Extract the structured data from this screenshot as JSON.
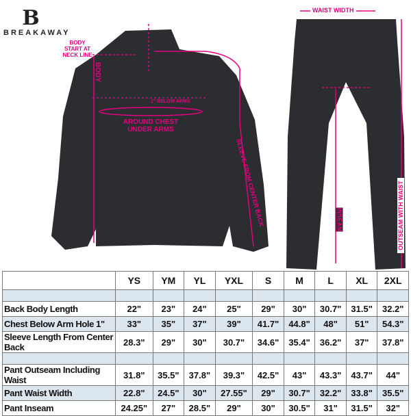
{
  "brand": {
    "logo_letter": "B",
    "name": "BREAKAWAY"
  },
  "annotations": {
    "body_start": "BODY START AT NECK LINE",
    "body": "BODY",
    "below_arms": "1\" BELOW ARMS",
    "around_chest": "AROUND CHEST UNDER ARMS",
    "sleeve": "SLEEVE FROM CENTER BACK",
    "waist_width": "WAIST WIDTH",
    "inseam": "INSEAM",
    "outseam": "OUTSEAM WITH WAIST"
  },
  "colors": {
    "accent": "#e6007e",
    "garment": "#2b2d31",
    "row_alt": "#dce6ef"
  },
  "table": {
    "sizes": [
      "YS",
      "YM",
      "YL",
      "YXL",
      "S",
      "M",
      "L",
      "XL",
      "2XL"
    ],
    "rows": [
      {
        "label": "Back Body Length",
        "values": [
          "22\"",
          "23\"",
          "24\"",
          "25\"",
          "29\"",
          "30\"",
          "30.7\"",
          "31.5\"",
          "32.2\""
        ]
      },
      {
        "label": "Chest Below Arm Hole 1\"",
        "values": [
          "33\"",
          "35\"",
          "37\"",
          "39\"",
          "41.7\"",
          "44.8\"",
          "48\"",
          "51\"",
          "54.3\""
        ]
      },
      {
        "label": "Sleeve Length From Center Back",
        "values": [
          "28.3\"",
          "29\"",
          "30\"",
          "30.7\"",
          "34.6\"",
          "35.4\"",
          "36.2\"",
          "37\"",
          "37.8\""
        ]
      },
      {
        "label": "Pant Outseam Including Waist",
        "values": [
          "31.8\"",
          "35.5\"",
          "37.8\"",
          "39.3\"",
          "42.5\"",
          "43\"",
          "43.3\"",
          "43.7\"",
          "44\""
        ]
      },
      {
        "label": "Pant Waist Width",
        "values": [
          "22.8\"",
          "24.5\"",
          "30\"",
          "27.55\"",
          "29\"",
          "30.7\"",
          "32.2\"",
          "33.8\"",
          "35.5\""
        ]
      },
      {
        "label": "Pant Inseam",
        "values": [
          "24.25\"",
          "27\"",
          "28.5\"",
          "29\"",
          "30\"",
          "30.5\"",
          "31\"",
          "31.5\"",
          "32\""
        ]
      }
    ]
  }
}
